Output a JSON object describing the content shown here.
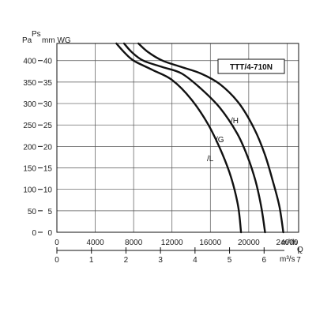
{
  "chart_data": {
    "type": "line",
    "model_label": "TTT/4-710N",
    "pa_axis_label": "Pa",
    "ps_label": "Ps",
    "mmwg_axis_label": "mm WG",
    "flow_unit_label": "m³/h",
    "flow_unit_label_2": "m³/s",
    "q_label": "Q",
    "pa_ticks": [
      "400",
      "350",
      "300",
      "250",
      "200",
      "150",
      "100",
      "50",
      "0"
    ],
    "mmwg_ticks": [
      "40",
      "35",
      "30",
      "25",
      "20",
      "15",
      "10",
      "5",
      "0"
    ],
    "m3h_ticks": [
      "0",
      "4000",
      "8000",
      "12000",
      "16000",
      "20000",
      "24000"
    ],
    "m3s_ticks": [
      "0",
      "1",
      "2",
      "3",
      "4",
      "5",
      "6",
      "7"
    ],
    "x_range_m3h": [
      0,
      25200
    ],
    "y_range_pa": [
      0,
      440
    ],
    "grid": true,
    "series": [
      {
        "name": "/H",
        "color": "#111111",
        "points": [
          [
            8500,
            440
          ],
          [
            9500,
            420
          ],
          [
            11000,
            400
          ],
          [
            13000,
            385
          ],
          [
            15000,
            370
          ],
          [
            17000,
            345
          ],
          [
            19000,
            300
          ],
          [
            20600,
            240
          ],
          [
            21700,
            180
          ],
          [
            22500,
            120
          ],
          [
            23200,
            60
          ],
          [
            23600,
            0
          ]
        ]
      },
      {
        "name": "/G",
        "color": "#111111",
        "points": [
          [
            7000,
            440
          ],
          [
            7800,
            420
          ],
          [
            9000,
            400
          ],
          [
            11000,
            385
          ],
          [
            13000,
            370
          ],
          [
            15000,
            335
          ],
          [
            17000,
            290
          ],
          [
            18800,
            230
          ],
          [
            19900,
            175
          ],
          [
            20700,
            120
          ],
          [
            21300,
            60
          ],
          [
            21700,
            0
          ]
        ]
      },
      {
        "name": "/L",
        "color": "#111111",
        "points": [
          [
            6200,
            440
          ],
          [
            7000,
            420
          ],
          [
            8000,
            400
          ],
          [
            10000,
            378
          ],
          [
            12000,
            355
          ],
          [
            14000,
            310
          ],
          [
            15800,
            250
          ],
          [
            17200,
            185
          ],
          [
            18200,
            125
          ],
          [
            18900,
            60
          ],
          [
            19200,
            0
          ]
        ]
      }
    ]
  }
}
